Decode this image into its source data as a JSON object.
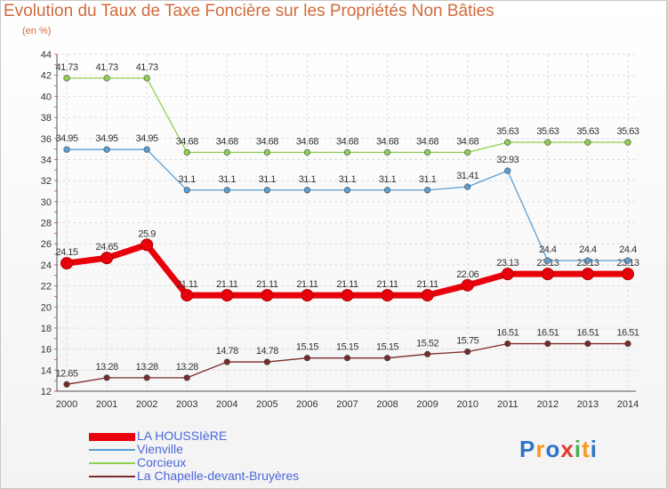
{
  "title": "Evolution du Taux de Taxe Foncière sur les Propriétés Non Bâties",
  "unit": "(en %)",
  "logo": {
    "text": "Proxiti",
    "colors": [
      "#2e75c9",
      "#f59a1a",
      "#2e75c9",
      "#e23b2e",
      "#4caf50",
      "#f59a1a",
      "#2e75c9"
    ]
  },
  "chart_data": {
    "type": "line",
    "title": "Evolution du Taux de Taxe Foncière sur les Propriétés Non Bâties",
    "ylabel": "(en %)",
    "xlabel": "",
    "x": [
      "2000",
      "2001",
      "2002",
      "2003",
      "2004",
      "2005",
      "2006",
      "2007",
      "2008",
      "2009",
      "2010",
      "2011",
      "2012",
      "2013",
      "2014"
    ],
    "ylim": [
      12,
      44
    ],
    "yticks": [
      "12",
      "14",
      "16",
      "18",
      "20",
      "22",
      "24",
      "26",
      "28",
      "30",
      "32",
      "34",
      "36",
      "38",
      "40",
      "42",
      "44"
    ],
    "grid": true,
    "legend": "bottom-left",
    "series": [
      {
        "name": "LA HOUSSIèRE",
        "color": "#e8000b",
        "thick": true,
        "values": [
          24.15,
          24.65,
          25.9,
          21.11,
          21.11,
          21.11,
          21.11,
          21.11,
          21.11,
          21.11,
          22.06,
          23.13,
          23.13,
          23.13,
          23.13
        ],
        "labels": [
          "24.15",
          "24.65",
          "25.9",
          "21.11",
          "21.11",
          "21.11",
          "21.11",
          "21.11",
          "21.11",
          "21.11",
          "22.06",
          "23.13",
          "23.13",
          "23.13",
          "23.13"
        ]
      },
      {
        "name": "Vienville",
        "color": "#5a9fd4",
        "thick": false,
        "values": [
          34.95,
          34.95,
          34.95,
          31.1,
          31.1,
          31.1,
          31.1,
          31.1,
          31.1,
          31.1,
          31.41,
          32.93,
          24.4,
          24.4,
          24.4
        ],
        "labels": [
          "34.95",
          "34.95",
          "34.95",
          "31.1",
          "31.1",
          "31.1",
          "31.1",
          "31.1",
          "31.1",
          "31.1",
          "31.41",
          "32.93",
          "24.4",
          "24.4",
          "24.4"
        ]
      },
      {
        "name": "Corcieux",
        "color": "#8fd14f",
        "thick": false,
        "values": [
          41.73,
          41.73,
          41.73,
          34.68,
          34.68,
          34.68,
          34.68,
          34.68,
          34.68,
          34.68,
          34.68,
          35.63,
          35.63,
          35.63,
          35.63
        ],
        "labels": [
          "41.73",
          "41.73",
          "41.73",
          "34.68",
          "34.68",
          "34.68",
          "34.68",
          "34.68",
          "34.68",
          "34.68",
          "34.68",
          "35.63",
          "35.63",
          "35.63",
          "35.63"
        ]
      },
      {
        "name": "La Chapelle-devant-Bruyères",
        "color": "#7b2a2a",
        "thick": false,
        "values": [
          12.65,
          13.28,
          13.28,
          13.28,
          14.78,
          14.78,
          15.15,
          15.15,
          15.15,
          15.52,
          15.75,
          16.51,
          16.51,
          16.51,
          16.51
        ],
        "labels": [
          "12.65",
          "13.28",
          "13.28",
          "13.28",
          "14.78",
          "14.78",
          "15.15",
          "15.15",
          "15.15",
          "15.52",
          "15.75",
          "16.51",
          "16.51",
          "16.51",
          "16.51"
        ]
      }
    ]
  }
}
